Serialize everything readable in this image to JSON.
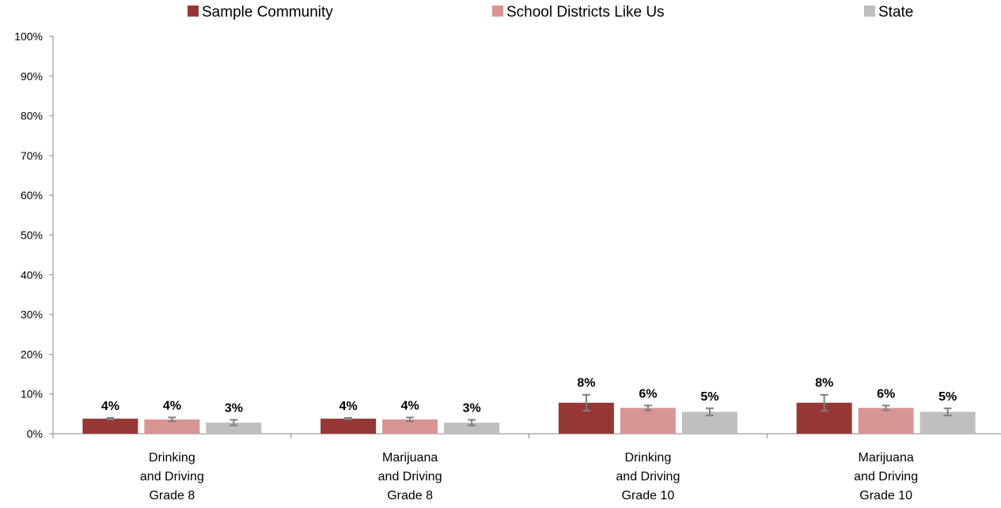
{
  "chart_data": {
    "type": "bar",
    "categories": [
      [
        "Drinking",
        "and Driving",
        "Grade 8"
      ],
      [
        "Marijuana",
        "and Driving",
        "Grade 8"
      ],
      [
        "Drinking",
        "and Driving",
        "Grade 10"
      ],
      [
        "Marijuana",
        "and Driving",
        "Grade 10"
      ]
    ],
    "series": [
      {
        "name": "Sample Community",
        "color": "#953735",
        "values": [
          3.8,
          3.8,
          7.8,
          7.8
        ],
        "labels": [
          "4%",
          "4%",
          "8%",
          "8%"
        ],
        "error": [
          [
            3.6,
            4.0
          ],
          [
            3.6,
            4.0
          ],
          [
            5.8,
            9.8
          ],
          [
            5.8,
            9.8
          ]
        ]
      },
      {
        "name": "School Districts Like Us",
        "color": "#D99594",
        "values": [
          3.6,
          3.6,
          6.5,
          6.5
        ],
        "labels": [
          "4%",
          "4%",
          "6%",
          "6%"
        ],
        "error": [
          [
            3.1,
            4.1
          ],
          [
            3.1,
            4.1
          ],
          [
            5.9,
            7.1
          ],
          [
            5.9,
            7.1
          ]
        ]
      },
      {
        "name": "State",
        "color": "#BFBFBF",
        "values": [
          2.8,
          2.8,
          5.5,
          5.5
        ],
        "labels": [
          "3%",
          "3%",
          "5%",
          "5%"
        ],
        "error": [
          [
            2.1,
            3.5
          ],
          [
            2.1,
            3.5
          ],
          [
            4.6,
            6.4
          ],
          [
            4.6,
            6.4
          ]
        ]
      }
    ],
    "y_ticks": [
      "0%",
      "10%",
      "20%",
      "30%",
      "40%",
      "50%",
      "60%",
      "70%",
      "80%",
      "90%",
      "100%"
    ],
    "ylim": [
      0,
      100
    ],
    "legend_position": "top",
    "grid": false
  }
}
